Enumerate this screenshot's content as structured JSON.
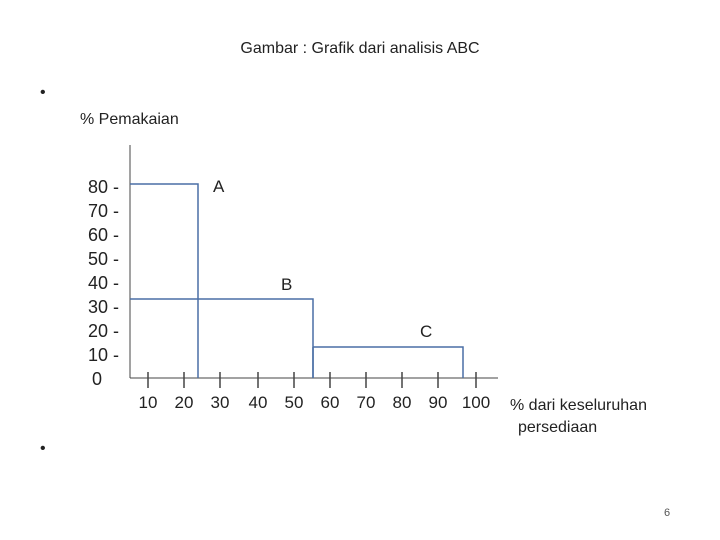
{
  "slide": {
    "title": "Gambar : Grafik dari analisis ABC",
    "bullets": [
      "•",
      "•"
    ],
    "page_number": "6"
  },
  "chart_data": {
    "type": "line",
    "title": "Gambar : Grafik dari analisis ABC",
    "ylabel": "% Pemakaian",
    "xlabel": [
      "% dari keseluruhan",
      "persediaan"
    ],
    "y_ticks": [
      "80 -",
      "70 -",
      "60 -",
      "50 -",
      "40 -",
      "30 -",
      "20 -",
      "10 -",
      "0"
    ],
    "x_ticks": [
      "10",
      "20",
      "30",
      "40",
      "50",
      "60",
      "70",
      "80",
      "90",
      "100"
    ],
    "xlim": [
      0,
      100
    ],
    "ylim": [
      0,
      80
    ],
    "grid": false,
    "segments": [
      {
        "name": "A",
        "x_start": 0,
        "x_end": 20,
        "y": 80
      },
      {
        "name": "B",
        "x_start": 0,
        "x_end": 50,
        "y": 30
      },
      {
        "name": "C",
        "x_start": 50,
        "x_end": 100,
        "y": 10
      }
    ],
    "colors": {
      "axis": "#444444",
      "bars": "#4a6fa5"
    }
  }
}
